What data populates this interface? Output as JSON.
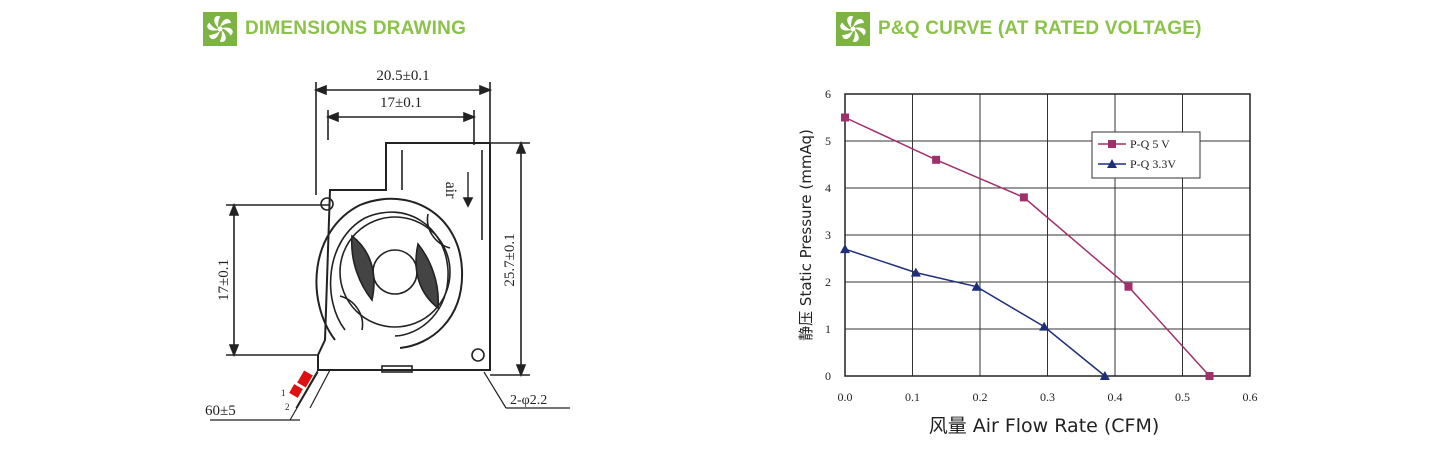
{
  "left_section": {
    "title": "DIMENSIONS DRAWING",
    "icon": "fan-icon",
    "dims": {
      "overall_width": "20.5±0.1",
      "inner_width": "17±0.1",
      "height_left": "17±0.1",
      "height_right": "25.7±0.1",
      "lead_length": "60±5",
      "holes": "2-φ2.2",
      "air_mark": "air",
      "pin_1": "1",
      "pin_2": "2"
    }
  },
  "right_section": {
    "title": "P&Q CURVE (AT RATED VOLTAGE)",
    "icon": "fan-icon"
  },
  "colors": {
    "brand_green": "#7cb342",
    "series_5v": "#a0306a",
    "series_33v": "#1f2f7a"
  },
  "chart_data": {
    "type": "line",
    "xlabel": "风量 Air Flow Rate (CFM)",
    "ylabel": "静压 Static Pressure (mmAq)",
    "xlim": [
      0,
      0.6
    ],
    "ylim": [
      0,
      6
    ],
    "xticks": [
      "0.0",
      "0.1",
      "0.2",
      "0.3",
      "0.4",
      "0.5",
      "0.6"
    ],
    "yticks": [
      "0",
      "1",
      "2",
      "3",
      "4",
      "5",
      "6"
    ],
    "grid": true,
    "legend_position": "top-right",
    "series": [
      {
        "name": "P-Q 5 V",
        "marker": "square",
        "color": "#a0306a",
        "x": [
          0.0,
          0.135,
          0.265,
          0.42,
          0.54
        ],
        "y": [
          5.5,
          4.6,
          3.8,
          1.9,
          0.0
        ]
      },
      {
        "name": "P-Q 3.3V",
        "marker": "triangle",
        "color": "#1f2f7a",
        "x": [
          0.0,
          0.105,
          0.195,
          0.295,
          0.385
        ],
        "y": [
          2.7,
          2.2,
          1.9,
          1.05,
          0.0
        ]
      }
    ]
  }
}
